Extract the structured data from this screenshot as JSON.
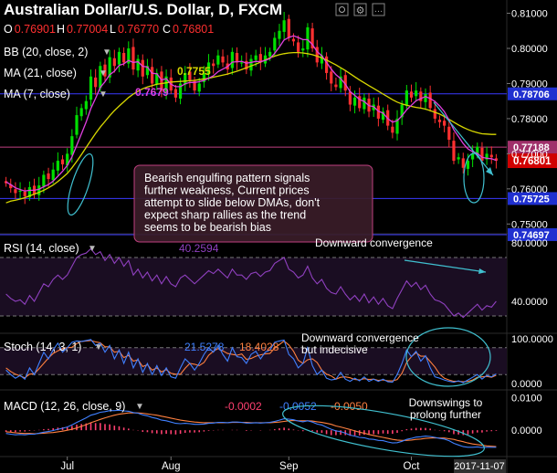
{
  "header": {
    "title": "Australian Dollar/U.S. Dollar, D, FXCM",
    "ohlc": [
      {
        "k": "O",
        "v": "0.76901"
      },
      {
        "k": "H",
        "v": "0.77004"
      },
      {
        "k": "L",
        "v": "0.76770"
      },
      {
        "k": "C",
        "v": "0.76801"
      }
    ],
    "indicators": [
      {
        "label": "BB (20, close, 2)",
        "value": ""
      },
      {
        "label": "MA (21, close)",
        "value": "0.7755"
      },
      {
        "label": "MA (7, close)",
        "value": "0.7679"
      }
    ]
  },
  "colors": {
    "up": "#00e000",
    "down": "#ff3030",
    "ma21": "#d8d800",
    "ma7": "#e040e0",
    "level": "#3a3aff",
    "hline_pink": "#c04080",
    "annot_bg": "#3a1c28",
    "rsi_line": "#9040c0",
    "stoch_k": "#4080ff",
    "stoch_d": "#ff8040",
    "macd_line": "#4080ff",
    "signal_line": "#ff8040",
    "hist": "#ff4070",
    "ellipse": "#40c0d0",
    "price_badge": "#d00000",
    "level_badge": "#2030d0"
  },
  "chart_data": [
    {
      "type": "candlestick",
      "title": "Australian Dollar/U.S. Dollar, D, FXCM",
      "ylim": [
        0.748,
        0.813
      ],
      "y_ticks": [
        "0.81000",
        "0.80000",
        "0.79000",
        "0.78000",
        "0.77000",
        "0.76000",
        "0.75000"
      ],
      "x_labels": [
        "Jul",
        "Aug",
        "Sep",
        "Oct"
      ],
      "x_label_index": [
        13,
        35,
        60,
        86
      ],
      "last_date": "2017-11-07",
      "last_price": "0.76801",
      "levels": [
        {
          "value": 0.78706,
          "label": "0.78706",
          "kind": "level"
        },
        {
          "value": 0.77188,
          "label": "0.77188",
          "kind": "pink"
        },
        {
          "value": 0.75725,
          "label": "0.75725",
          "kind": "level"
        },
        {
          "value": 0.74697,
          "label": "0.74697",
          "kind": "level"
        }
      ],
      "ma21_label": "0.7755",
      "ma7_label": "0.7679",
      "closes": [
        0.7616,
        0.7602,
        0.7588,
        0.7595,
        0.7579,
        0.7605,
        0.7585,
        0.761,
        0.764,
        0.7628,
        0.7655,
        0.768,
        0.767,
        0.77,
        0.775,
        0.781,
        0.783,
        0.785,
        0.792,
        0.789,
        0.795,
        0.792,
        0.7975,
        0.795,
        0.799,
        0.796,
        0.8,
        0.794,
        0.797,
        0.792,
        0.795,
        0.79,
        0.793,
        0.788,
        0.792,
        0.788,
        0.786,
        0.79,
        0.793,
        0.791,
        0.788,
        0.79,
        0.793,
        0.796,
        0.795,
        0.798,
        0.796,
        0.794,
        0.799,
        0.796,
        0.796,
        0.794,
        0.797,
        0.798,
        0.796,
        0.798,
        0.799,
        0.803,
        0.805,
        0.808,
        0.803,
        0.802,
        0.799,
        0.8,
        0.806,
        0.8,
        0.796,
        0.798,
        0.793,
        0.79,
        0.789,
        0.792,
        0.788,
        0.784,
        0.786,
        0.783,
        0.786,
        0.782,
        0.784,
        0.78,
        0.782,
        0.778,
        0.776,
        0.78,
        0.784,
        0.788,
        0.786,
        0.788,
        0.785,
        0.787,
        0.783,
        0.78,
        0.779,
        0.778,
        0.774,
        0.768,
        0.769,
        0.766,
        0.768,
        0.77,
        0.772,
        0.768,
        0.77,
        0.769,
        0.768
      ],
      "ma21": [
        0.756,
        0.7565,
        0.7568,
        0.7571,
        0.7575,
        0.758,
        0.7585,
        0.759,
        0.7596,
        0.7603,
        0.7611,
        0.7621,
        0.7632,
        0.7644,
        0.766,
        0.7678,
        0.7698,
        0.7718,
        0.7738,
        0.7758,
        0.7776,
        0.7792,
        0.7808,
        0.7823,
        0.7836,
        0.7848,
        0.786,
        0.787,
        0.7878,
        0.7885,
        0.789,
        0.7894,
        0.7898,
        0.79,
        0.7902,
        0.7904,
        0.7905,
        0.7906,
        0.7907,
        0.7908,
        0.7909,
        0.7911,
        0.7913,
        0.7915,
        0.7918,
        0.7921,
        0.7924,
        0.7927,
        0.7931,
        0.7935,
        0.794,
        0.7945,
        0.795,
        0.7955,
        0.7961,
        0.7967,
        0.7973,
        0.7978,
        0.7982,
        0.7985,
        0.7987,
        0.7988,
        0.7988,
        0.7987,
        0.7985,
        0.7982,
        0.7978,
        0.7973,
        0.7967,
        0.796,
        0.7953,
        0.7945,
        0.7937,
        0.7928,
        0.7919,
        0.791,
        0.7902,
        0.7894,
        0.7886,
        0.7878,
        0.787,
        0.7862,
        0.7854,
        0.7847,
        0.7842,
        0.7838,
        0.7835,
        0.7832,
        0.783,
        0.7827,
        0.7823,
        0.7818,
        0.7813,
        0.7806,
        0.7798,
        0.779,
        0.7782,
        0.7775,
        0.7769,
        0.7764,
        0.776,
        0.7757,
        0.7756,
        0.7755,
        0.7755
      ],
      "ma7": [
        0.762,
        0.7612,
        0.7603,
        0.7598,
        0.7594,
        0.7596,
        0.7596,
        0.7599,
        0.7606,
        0.7612,
        0.7622,
        0.7636,
        0.765,
        0.7667,
        0.7691,
        0.7724,
        0.7757,
        0.779,
        0.7829,
        0.7858,
        0.7889,
        0.7905,
        0.7925,
        0.7935,
        0.7952,
        0.7956,
        0.7966,
        0.796,
        0.7962,
        0.7949,
        0.7947,
        0.7929,
        0.7928,
        0.791,
        0.7914,
        0.7898,
        0.7891,
        0.7891,
        0.7899,
        0.7903,
        0.7903,
        0.7905,
        0.7909,
        0.7915,
        0.7922,
        0.7934,
        0.7941,
        0.7948,
        0.7961,
        0.7962,
        0.7963,
        0.7958,
        0.796,
        0.7963,
        0.7962,
        0.7966,
        0.7971,
        0.7986,
        0.8004,
        0.8024,
        0.8031,
        0.8036,
        0.8031,
        0.8025,
        0.8025,
        0.8011,
        0.7991,
        0.7979,
        0.796,
        0.7941,
        0.7925,
        0.7914,
        0.7898,
        0.7877,
        0.7866,
        0.7855,
        0.7849,
        0.7837,
        0.7834,
        0.7821,
        0.7816,
        0.78,
        0.779,
        0.7794,
        0.7808,
        0.7825,
        0.7838,
        0.7851,
        0.7857,
        0.7863,
        0.7857,
        0.7849,
        0.7836,
        0.782,
        0.7796,
        0.7768,
        0.7749,
        0.7729,
        0.7714,
        0.7706,
        0.7701,
        0.769,
        0.7687,
        0.7686,
        0.7681
      ]
    },
    {
      "type": "line",
      "title": "RSI (14, close)",
      "value_label": "40.2594",
      "ylim": [
        20,
        85
      ],
      "y_ticks": [
        "80.0000",
        "40.0000"
      ],
      "bands": [
        70,
        30
      ],
      "values": [
        45,
        42,
        40,
        41,
        38,
        44,
        40,
        46,
        52,
        50,
        55,
        58,
        55,
        58,
        64,
        70,
        72,
        73,
        76,
        72,
        74,
        68,
        72,
        66,
        70,
        64,
        68,
        58,
        62,
        56,
        60,
        54,
        58,
        52,
        57,
        52,
        50,
        56,
        58,
        55,
        52,
        55,
        58,
        61,
        59,
        62,
        59,
        56,
        62,
        58,
        58,
        55,
        59,
        60,
        57,
        60,
        61,
        66,
        68,
        70,
        62,
        60,
        56,
        58,
        64,
        56,
        52,
        55,
        49,
        46,
        45,
        50,
        45,
        41,
        44,
        40,
        45,
        39,
        43,
        38,
        42,
        37,
        35,
        42,
        48,
        54,
        50,
        53,
        48,
        51,
        45,
        41,
        40,
        38,
        34,
        30,
        32,
        29,
        32,
        35,
        38,
        34,
        37,
        36,
        40
      ]
    },
    {
      "type": "line",
      "title": "Stoch (14, 3, 1)",
      "k_label": "21.5278",
      "d_label": "18.4028",
      "ylim": [
        -8,
        108
      ],
      "y_ticks": [
        "100.0000",
        "0.0000"
      ],
      "bands": [
        80,
        20
      ],
      "k": [
        30,
        20,
        12,
        18,
        10,
        35,
        20,
        45,
        70,
        55,
        75,
        90,
        70,
        80,
        92,
        95,
        94,
        96,
        98,
        85,
        90,
        70,
        85,
        55,
        75,
        45,
        70,
        35,
        55,
        25,
        45,
        20,
        40,
        18,
        35,
        15,
        12,
        35,
        55,
        45,
        30,
        45,
        65,
        80,
        70,
        85,
        65,
        50,
        80,
        60,
        58,
        45,
        65,
        72,
        55,
        70,
        75,
        92,
        95,
        97,
        65,
        55,
        35,
        45,
        80,
        40,
        20,
        30,
        12,
        8,
        10,
        25,
        10,
        5,
        12,
        6,
        15,
        5,
        10,
        5,
        10,
        4,
        3,
        20,
        45,
        75,
        60,
        72,
        50,
        62,
        35,
        15,
        12,
        8,
        5,
        3,
        6,
        2,
        8,
        14,
        20,
        10,
        18,
        15,
        21.5
      ],
      "d": [
        35,
        27,
        21,
        17,
        13,
        21,
        22,
        33,
        45,
        57,
        67,
        73,
        78,
        80,
        81,
        89,
        94,
        95,
        96,
        93,
        91,
        82,
        82,
        70,
        72,
        58,
        63,
        50,
        53,
        38,
        42,
        30,
        35,
        26,
        31,
        23,
        21,
        21,
        34,
        45,
        43,
        40,
        47,
        63,
        72,
        78,
        73,
        67,
        65,
        63,
        66,
        54,
        56,
        61,
        64,
        66,
        67,
        79,
        87,
        95,
        86,
        72,
        52,
        45,
        53,
        55,
        47,
        30,
        21,
        17,
        10,
        14,
        15,
        13,
        9,
        8,
        11,
        9,
        10,
        7,
        8,
        6,
        6,
        9,
        23,
        47,
        60,
        69,
        61,
        61,
        49,
        37,
        21,
        12,
        8,
        5,
        5,
        4,
        5,
        8,
        14,
        15,
        16,
        14,
        18.4
      ]
    },
    {
      "type": "line",
      "title": "MACD (12, 26, close, 9)",
      "hist_label": "-0.0002",
      "macd_label": "-0.0052",
      "signal_label": "-0.0050",
      "ylim": [
        -0.0075,
        0.0115
      ],
      "y_ticks": [
        "0.0100",
        "0.0000"
      ],
      "macd": [
        -0.001,
        -0.0012,
        -0.0014,
        -0.0013,
        -0.0014,
        -0.0012,
        -0.0012,
        -0.0009,
        -0.0006,
        -0.0004,
        -0.0001,
        0.0003,
        0.0006,
        0.001,
        0.0016,
        0.0024,
        0.0031,
        0.0038,
        0.0046,
        0.005,
        0.0055,
        0.0057,
        0.006,
        0.006,
        0.0061,
        0.0059,
        0.0058,
        0.0054,
        0.0052,
        0.0047,
        0.0044,
        0.0039,
        0.0036,
        0.0031,
        0.0029,
        0.0025,
        0.0021,
        0.002,
        0.0021,
        0.002,
        0.0018,
        0.0018,
        0.0019,
        0.0021,
        0.0022,
        0.0024,
        0.0024,
        0.0023,
        0.0025,
        0.0025,
        0.0024,
        0.0022,
        0.0022,
        0.0023,
        0.0022,
        0.0023,
        0.0024,
        0.0027,
        0.0031,
        0.0035,
        0.0034,
        0.0032,
        0.0028,
        0.0026,
        0.0029,
        0.0025,
        0.0019,
        0.0016,
        0.0009,
        0.0003,
        -0.0002,
        -0.0004,
        -0.0009,
        -0.0015,
        -0.0018,
        -0.0022,
        -0.0023,
        -0.0027,
        -0.0028,
        -0.0031,
        -0.0032,
        -0.0036,
        -0.0039,
        -0.0038,
        -0.0034,
        -0.0028,
        -0.0025,
        -0.0021,
        -0.002,
        -0.0018,
        -0.0019,
        -0.0022,
        -0.0025,
        -0.0027,
        -0.0032,
        -0.004,
        -0.0045,
        -0.005,
        -0.0052,
        -0.0052,
        -0.0051,
        -0.0053,
        -0.0052,
        -0.0052,
        -0.0052
      ],
      "signal": [
        -0.0005,
        -0.0006,
        -0.0008,
        -0.0009,
        -0.001,
        -0.001,
        -0.0011,
        -0.001,
        -0.0009,
        -0.0008,
        -0.0007,
        -0.0005,
        -0.0003,
        -0.0,
        0.0003,
        0.0007,
        0.0012,
        0.0017,
        0.0023,
        0.0028,
        0.0033,
        0.0038,
        0.0042,
        0.0046,
        0.0049,
        0.0051,
        0.0053,
        0.0053,
        0.0053,
        0.0052,
        0.005,
        0.0048,
        0.0046,
        0.0043,
        0.004,
        0.0037,
        0.0034,
        0.0031,
        0.0029,
        0.0027,
        0.0025,
        0.0024,
        0.0023,
        0.0023,
        0.0023,
        0.0023,
        0.0023,
        0.0023,
        0.0024,
        0.0024,
        0.0024,
        0.0024,
        0.0023,
        0.0023,
        0.0023,
        0.0023,
        0.0023,
        0.0024,
        0.0025,
        0.0027,
        0.0029,
        0.003,
        0.0029,
        0.0029,
        0.0029,
        0.0028,
        0.0026,
        0.0024,
        0.0021,
        0.0018,
        0.0013,
        0.001,
        0.0006,
        0.0002,
        -0.0002,
        -0.0006,
        -0.0009,
        -0.0013,
        -0.0016,
        -0.0019,
        -0.0022,
        -0.0025,
        -0.0028,
        -0.003,
        -0.0031,
        -0.0031,
        -0.003,
        -0.0028,
        -0.0027,
        -0.0025,
        -0.0024,
        -0.0023,
        -0.0024,
        -0.0024,
        -0.0026,
        -0.0028,
        -0.0032,
        -0.0035,
        -0.0039,
        -0.0042,
        -0.0044,
        -0.0046,
        -0.0048,
        -0.0049,
        -0.005
      ]
    }
  ],
  "annotations": {
    "main_box": "Bearish engulfing pattern signals further weakness, Current prices attempt to slide below DMAs, don't expect sharp rallies as the trend seems to be bearish bias",
    "rsi_note": "Downward convergence",
    "stoch_note_1": "Downward convergence",
    "stoch_note_2": "but indecisive",
    "macd_note_1": "Downswings to",
    "macd_note_2": "prolong further"
  }
}
